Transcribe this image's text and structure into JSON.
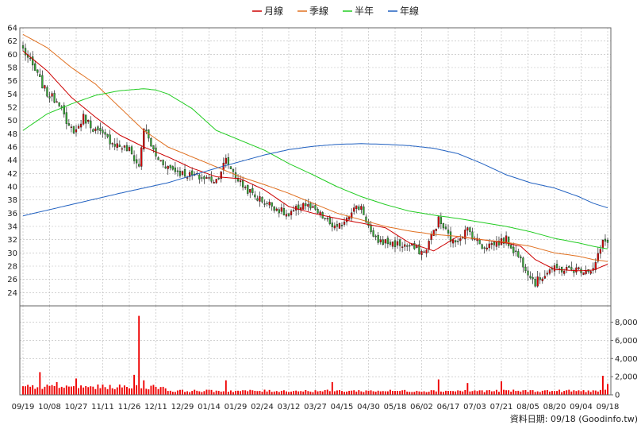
{
  "chart_data": {
    "type": "candlestick",
    "legend": [
      {
        "name": "月線",
        "color": "#cc0000"
      },
      {
        "name": "季線",
        "color": "#e07020"
      },
      {
        "name": "半年",
        "color": "#22cc22"
      },
      {
        "name": "年線",
        "color": "#2060c0"
      }
    ],
    "colors": {
      "up": "#dd0000",
      "down": "#33aa33",
      "volume": "#ee0000",
      "grid": "#b8b8b8",
      "frame": "#666666"
    },
    "price_axis": {
      "min": 22,
      "max": 64,
      "ticks": [
        24,
        26,
        28,
        30,
        32,
        34,
        36,
        38,
        40,
        42,
        44,
        46,
        48,
        50,
        52,
        54,
        56,
        58,
        60,
        62,
        64
      ]
    },
    "volume_axis": {
      "min": 0,
      "max": 9800,
      "ticks": [
        0,
        2000,
        4000,
        6000,
        8000
      ],
      "tick_labels": [
        "0",
        "2,000",
        "4,000",
        "6,000",
        "8,000"
      ]
    },
    "x_labels": [
      "09/19",
      "10/08",
      "10/27",
      "11/11",
      "11/26",
      "12/11",
      "12/29",
      "01/14",
      "01/29",
      "02/24",
      "03/12",
      "03/27",
      "04/15",
      "04/30",
      "05/18",
      "06/02",
      "06/17",
      "07/03",
      "07/21",
      "08/05",
      "08/20",
      "09/04",
      "09/18"
    ],
    "close_keypoints": [
      [
        0,
        60.8
      ],
      [
        5,
        57.5
      ],
      [
        10,
        54.0
      ],
      [
        16,
        52.5
      ],
      [
        18,
        49.0
      ],
      [
        22,
        48.5
      ],
      [
        25,
        50.5
      ],
      [
        30,
        48.5
      ],
      [
        38,
        46.5
      ],
      [
        44,
        45.5
      ],
      [
        48,
        43.0
      ],
      [
        50,
        49.0
      ],
      [
        55,
        44.5
      ],
      [
        60,
        43.0
      ],
      [
        66,
        42.0
      ],
      [
        72,
        41.5
      ],
      [
        80,
        41.0
      ],
      [
        84,
        44.0
      ],
      [
        90,
        40.5
      ],
      [
        96,
        38.5
      ],
      [
        104,
        37.0
      ],
      [
        110,
        35.5
      ],
      [
        116,
        37.5
      ],
      [
        122,
        36.0
      ],
      [
        130,
        33.5
      ],
      [
        136,
        36.5
      ],
      [
        140,
        37.0
      ],
      [
        145,
        32.0
      ],
      [
        152,
        31.5
      ],
      [
        160,
        31.0
      ],
      [
        166,
        30.0
      ],
      [
        172,
        35.0
      ],
      [
        178,
        31.5
      ],
      [
        184,
        33.5
      ],
      [
        190,
        31.0
      ],
      [
        196,
        31.5
      ],
      [
        200,
        32.0
      ],
      [
        206,
        29.0
      ],
      [
        212,
        25.5
      ],
      [
        218,
        27.5
      ],
      [
        226,
        27.5
      ],
      [
        236,
        27.5
      ],
      [
        240,
        31.5
      ],
      [
        242,
        32.0
      ]
    ],
    "volume_spikes": [
      [
        7,
        2500
      ],
      [
        14,
        1400
      ],
      [
        22,
        1800
      ],
      [
        46,
        2200
      ],
      [
        48,
        8700
      ],
      [
        50,
        1600
      ],
      [
        84,
        1600
      ],
      [
        128,
        1400
      ],
      [
        172,
        1700
      ],
      [
        184,
        1300
      ],
      [
        198,
        1500
      ],
      [
        240,
        2100
      ],
      [
        242,
        1200
      ]
    ],
    "ma_lines": [
      {
        "name": "月線",
        "values": [
          [
            0,
            60.5
          ],
          [
            10,
            57.5
          ],
          [
            20,
            53.5
          ],
          [
            30,
            50.5
          ],
          [
            40,
            47.8
          ],
          [
            50,
            46.0
          ],
          [
            60,
            44.5
          ],
          [
            70,
            42.8
          ],
          [
            80,
            41.5
          ],
          [
            90,
            41.2
          ],
          [
            100,
            39.5
          ],
          [
            110,
            37.0
          ],
          [
            120,
            36.0
          ],
          [
            130,
            35.2
          ],
          [
            140,
            34.5
          ],
          [
            150,
            33.8
          ],
          [
            160,
            31.5
          ],
          [
            170,
            30.3
          ],
          [
            180,
            32.5
          ],
          [
            190,
            32.0
          ],
          [
            200,
            31.5
          ],
          [
            206,
            31.0
          ],
          [
            212,
            29.0
          ],
          [
            220,
            27.5
          ],
          [
            230,
            27.3
          ],
          [
            236,
            27.4
          ],
          [
            242,
            28.3
          ]
        ]
      },
      {
        "name": "季線",
        "values": [
          [
            0,
            63.0
          ],
          [
            10,
            61.0
          ],
          [
            20,
            58.0
          ],
          [
            30,
            55.5
          ],
          [
            40,
            52.0
          ],
          [
            50,
            48.5
          ],
          [
            60,
            46.0
          ],
          [
            70,
            44.5
          ],
          [
            80,
            43.0
          ],
          [
            90,
            41.5
          ],
          [
            100,
            40.3
          ],
          [
            110,
            39.0
          ],
          [
            120,
            37.5
          ],
          [
            130,
            36.0
          ],
          [
            140,
            35.0
          ],
          [
            150,
            34.0
          ],
          [
            160,
            33.3
          ],
          [
            170,
            32.8
          ],
          [
            180,
            32.5
          ],
          [
            190,
            32.0
          ],
          [
            200,
            31.6
          ],
          [
            210,
            31.0
          ],
          [
            220,
            30.0
          ],
          [
            230,
            29.5
          ],
          [
            236,
            29.0
          ],
          [
            242,
            28.7
          ]
        ]
      },
      {
        "name": "半年",
        "values": [
          [
            0,
            48.5
          ],
          [
            10,
            51.0
          ],
          [
            20,
            52.5
          ],
          [
            30,
            53.8
          ],
          [
            40,
            54.5
          ],
          [
            50,
            54.8
          ],
          [
            55,
            54.6
          ],
          [
            60,
            54.0
          ],
          [
            70,
            51.8
          ],
          [
            80,
            48.5
          ],
          [
            90,
            47.0
          ],
          [
            100,
            45.5
          ],
          [
            110,
            43.5
          ],
          [
            120,
            41.8
          ],
          [
            130,
            40.0
          ],
          [
            140,
            38.5
          ],
          [
            150,
            37.3
          ],
          [
            160,
            36.3
          ],
          [
            170,
            35.7
          ],
          [
            180,
            35.2
          ],
          [
            190,
            34.6
          ],
          [
            200,
            34.0
          ],
          [
            210,
            33.2
          ],
          [
            220,
            32.2
          ],
          [
            230,
            31.5
          ],
          [
            236,
            31.0
          ],
          [
            242,
            30.6
          ]
        ]
      },
      {
        "name": "年線",
        "values": [
          [
            0,
            35.6
          ],
          [
            20,
            37.3
          ],
          [
            40,
            39.0
          ],
          [
            60,
            40.6
          ],
          [
            80,
            42.8
          ],
          [
            100,
            44.8
          ],
          [
            110,
            45.6
          ],
          [
            120,
            46.1
          ],
          [
            130,
            46.4
          ],
          [
            140,
            46.5
          ],
          [
            150,
            46.4
          ],
          [
            160,
            46.2
          ],
          [
            170,
            45.8
          ],
          [
            180,
            45.0
          ],
          [
            190,
            43.5
          ],
          [
            200,
            41.8
          ],
          [
            210,
            40.6
          ],
          [
            220,
            39.8
          ],
          [
            230,
            38.5
          ],
          [
            236,
            37.5
          ],
          [
            242,
            36.8
          ]
        ]
      }
    ]
  },
  "source_label": "資料日期: 09/18 (Goodinfo.tw)"
}
